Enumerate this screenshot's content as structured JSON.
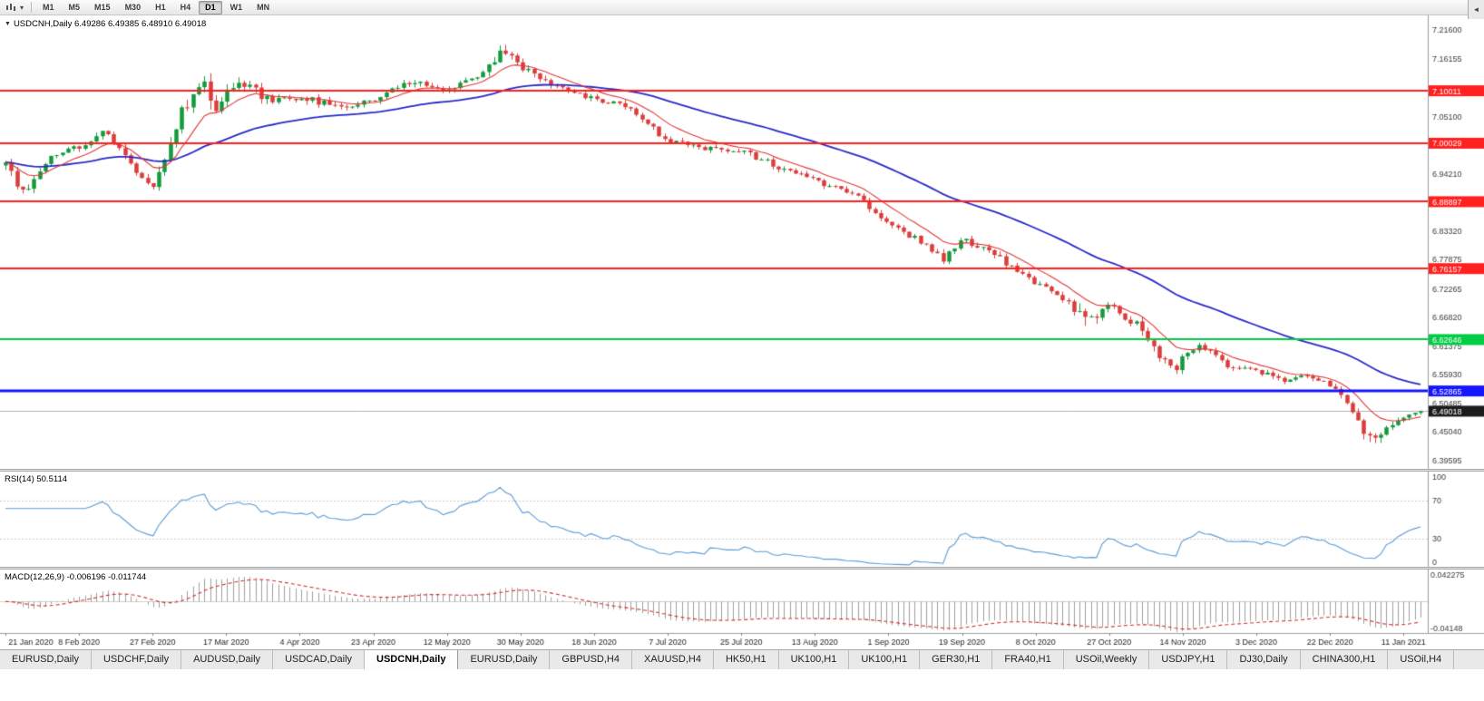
{
  "icons": {
    "collapse": "▼",
    "dropdown_caret": "▾",
    "tab_scroll_left": "◄"
  },
  "toolbar": {
    "timeframes": [
      {
        "label": "M1",
        "active": false
      },
      {
        "label": "M5",
        "active": false
      },
      {
        "label": "M15",
        "active": false
      },
      {
        "label": "M30",
        "active": false
      },
      {
        "label": "H1",
        "active": false
      },
      {
        "label": "H4",
        "active": false
      },
      {
        "label": "D1",
        "active": true
      },
      {
        "label": "W1",
        "active": false
      },
      {
        "label": "MN",
        "active": false
      }
    ]
  },
  "chart": {
    "symbol": "USDCNH,Daily",
    "ohlc": "6.49286 6.49385 6.48910 6.49018",
    "rsi_label": "RSI(14) 50.5114",
    "macd_label": "MACD(12,26,9) -0.006196 -0.011744"
  },
  "chart_data": {
    "type": "candlestick",
    "symbol": "USDCNH",
    "timeframe": "Daily",
    "quote": {
      "open": "6.49286",
      "high": "6.49385",
      "low": "6.48910",
      "close": "6.49018"
    },
    "current_price": 6.49018,
    "current_price_label": "6.49018",
    "price_range": {
      "top": 7.2436,
      "bottom": 6.3804
    },
    "price_axis_ticks": [
      "7.21600",
      "7.16155",
      "7.05100",
      "6.94210",
      "6.83320",
      "6.77875",
      "6.72265",
      "6.66820",
      "6.61375",
      "6.55930",
      "6.50485",
      "6.45040",
      "6.39595"
    ],
    "levels": [
      {
        "value": 7.10011,
        "label": "7.10011",
        "color": "#ff2020",
        "width": 2
      },
      {
        "value": 7.00029,
        "label": "7.00029",
        "color": "#ff2020",
        "width": 2
      },
      {
        "value": 6.88897,
        "label": "6.88897",
        "color": "#ff2020",
        "width": 2
      },
      {
        "value": 6.76157,
        "label": "6.76157",
        "color": "#ff2020",
        "width": 2
      },
      {
        "value": 6.62646,
        "label": "6.62646",
        "color": "#00cc44",
        "width": 2
      },
      {
        "value": 6.52865,
        "label": "6.52865",
        "color": "#1515ff",
        "width": 3
      }
    ],
    "dates": [
      {
        "label": "21 Jan 2020",
        "t": 0.0
      },
      {
        "label": "8 Feb 2020",
        "t": 0.052
      },
      {
        "label": "27 Feb 2020",
        "t": 0.104
      },
      {
        "label": "17 Mar 2020",
        "t": 0.156
      },
      {
        "label": "4 Apr 2020",
        "t": 0.208
      },
      {
        "label": "23 Apr 2020",
        "t": 0.26
      },
      {
        "label": "12 May 2020",
        "t": 0.312
      },
      {
        "label": "30 May 2020",
        "t": 0.364
      },
      {
        "label": "18 Jun 2020",
        "t": 0.416
      },
      {
        "label": "7 Jul 2020",
        "t": 0.468
      },
      {
        "label": "25 Jul 2020",
        "t": 0.52
      },
      {
        "label": "13 Aug 2020",
        "t": 0.572
      },
      {
        "label": "1 Sep 2020",
        "t": 0.624
      },
      {
        "label": "19 Sep 2020",
        "t": 0.676
      },
      {
        "label": "8 Oct 2020",
        "t": 0.728
      },
      {
        "label": "27 Oct 2020",
        "t": 0.78
      },
      {
        "label": "14 Nov 2020",
        "t": 0.832
      },
      {
        "label": "3 Dec 2020",
        "t": 0.884
      },
      {
        "label": "22 Dec 2020",
        "t": 0.936
      },
      {
        "label": "11 Jan 2021",
        "t": 0.988
      }
    ],
    "candle_count": 250,
    "price_anchors_format": [
      "t",
      "close",
      "volatility"
    ],
    "price_anchors": [
      [
        0.0,
        6.958,
        0.02
      ],
      [
        0.012,
        6.905,
        0.018
      ],
      [
        0.03,
        6.972,
        0.016
      ],
      [
        0.052,
        6.992,
        0.015
      ],
      [
        0.068,
        7.026,
        0.014
      ],
      [
        0.086,
        6.968,
        0.016
      ],
      [
        0.104,
        6.912,
        0.018
      ],
      [
        0.12,
        7.035,
        0.03
      ],
      [
        0.132,
        7.098,
        0.036
      ],
      [
        0.14,
        7.135,
        0.04
      ],
      [
        0.148,
        7.062,
        0.038
      ],
      [
        0.156,
        7.105,
        0.03
      ],
      [
        0.17,
        7.115,
        0.024
      ],
      [
        0.186,
        7.082,
        0.019
      ],
      [
        0.208,
        7.09,
        0.016
      ],
      [
        0.235,
        7.068,
        0.014
      ],
      [
        0.26,
        7.083,
        0.013
      ],
      [
        0.286,
        7.118,
        0.013
      ],
      [
        0.312,
        7.098,
        0.014
      ],
      [
        0.336,
        7.134,
        0.014
      ],
      [
        0.352,
        7.176,
        0.024
      ],
      [
        0.364,
        7.148,
        0.017
      ],
      [
        0.386,
        7.112,
        0.014
      ],
      [
        0.416,
        7.086,
        0.013
      ],
      [
        0.442,
        7.066,
        0.012
      ],
      [
        0.468,
        7.004,
        0.013
      ],
      [
        0.494,
        6.992,
        0.014
      ],
      [
        0.52,
        6.986,
        0.013
      ],
      [
        0.548,
        6.952,
        0.013
      ],
      [
        0.572,
        6.93,
        0.013
      ],
      [
        0.6,
        6.904,
        0.012
      ],
      [
        0.624,
        6.848,
        0.013
      ],
      [
        0.648,
        6.812,
        0.014
      ],
      [
        0.662,
        6.778,
        0.016
      ],
      [
        0.676,
        6.82,
        0.014
      ],
      [
        0.7,
        6.786,
        0.014
      ],
      [
        0.728,
        6.732,
        0.014
      ],
      [
        0.752,
        6.7,
        0.016
      ],
      [
        0.764,
        6.655,
        0.042
      ],
      [
        0.77,
        6.672,
        0.036
      ],
      [
        0.78,
        6.692,
        0.016
      ],
      [
        0.8,
        6.654,
        0.018
      ],
      [
        0.814,
        6.6,
        0.022
      ],
      [
        0.826,
        6.568,
        0.022
      ],
      [
        0.834,
        6.602,
        0.018
      ],
      [
        0.846,
        6.616,
        0.014
      ],
      [
        0.862,
        6.578,
        0.014
      ],
      [
        0.884,
        6.57,
        0.013
      ],
      [
        0.902,
        6.546,
        0.013
      ],
      [
        0.918,
        6.556,
        0.012
      ],
      [
        0.936,
        6.54,
        0.012
      ],
      [
        0.95,
        6.504,
        0.015
      ],
      [
        0.962,
        6.432,
        0.026
      ],
      [
        0.972,
        6.45,
        0.02
      ],
      [
        0.982,
        6.468,
        0.014
      ],
      [
        1.0,
        6.49,
        0.011
      ]
    ],
    "indicators": {
      "rsi": {
        "name": "RSI",
        "period": 14,
        "value": "50.5114",
        "axis": [
          {
            "label": "100",
            "v": 100
          },
          {
            "label": "70",
            "v": 70
          },
          {
            "label": "30",
            "v": 30
          },
          {
            "label": "0",
            "v": 0
          }
        ],
        "guide_levels": [
          70,
          30
        ]
      },
      "macd": {
        "name": "MACD",
        "params": "12,26,9",
        "values": [
          "-0.006196",
          "-0.011744"
        ],
        "axis": [
          {
            "label": "0.042275",
            "v": 0.042275
          },
          {
            "label": "-0.04148",
            "v": -0.04148
          }
        ],
        "range": {
          "max": 0.0457,
          "min": -0.0447
        }
      }
    },
    "colors": {
      "up": "#149a3c",
      "down": "#dc3c3c",
      "ma_fast": "#e03838",
      "ma_slow": "#2929c8",
      "rsi_line": "#5b9bd5",
      "macd_hist": "#9f9f9f",
      "macd_signal": "#d03030",
      "bid_line": "#b4b4b4",
      "bid_label_bg": "#1c1c1c",
      "level_red": "#ff2020",
      "level_green": "#00cc44",
      "level_blue": "#1515ff"
    }
  },
  "tabs": {
    "items": [
      {
        "label": "EURUSD,Daily",
        "active": false
      },
      {
        "label": "USDCHF,Daily",
        "active": false
      },
      {
        "label": "AUDUSD,Daily",
        "active": false
      },
      {
        "label": "USDCAD,Daily",
        "active": false
      },
      {
        "label": "USDCNH,Daily",
        "active": true
      },
      {
        "label": "EURUSD,Daily",
        "active": false
      },
      {
        "label": "GBPUSD,H4",
        "active": false
      },
      {
        "label": "XAUUSD,H4",
        "active": false
      },
      {
        "label": "HK50,H1",
        "active": false
      },
      {
        "label": "UK100,H1",
        "active": false
      },
      {
        "label": "UK100,H1",
        "active": false
      },
      {
        "label": "GER30,H1",
        "active": false
      },
      {
        "label": "FRA40,H1",
        "active": false
      },
      {
        "label": "USOil,Weekly",
        "active": false
      },
      {
        "label": "USDJPY,H1",
        "active": false
      },
      {
        "label": "DJ30,Daily",
        "active": false
      },
      {
        "label": "CHINA300,H1",
        "active": false
      },
      {
        "label": "USOil,H4",
        "active": false
      }
    ]
  }
}
